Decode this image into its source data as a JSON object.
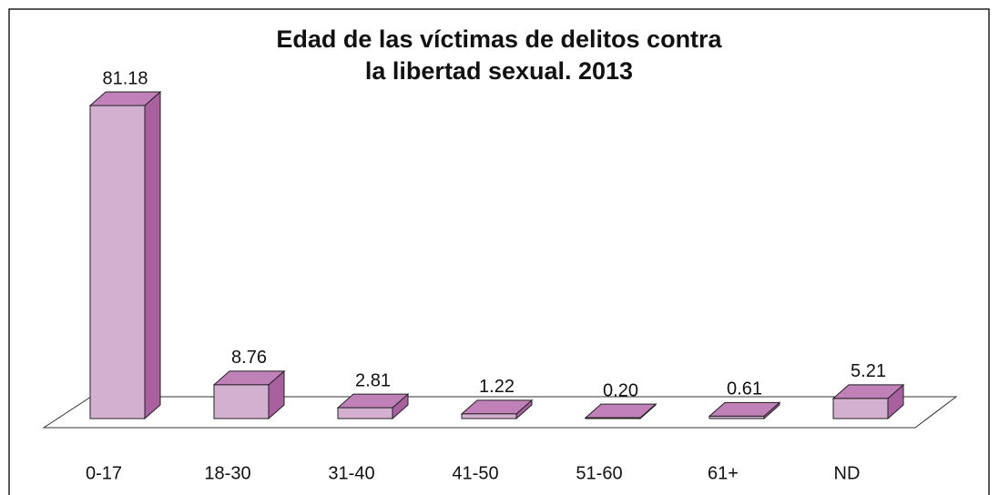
{
  "chart_data": {
    "type": "bar3d",
    "title": [
      "Edad de las víctimas de delitos contra",
      "la libertad sexual. 2013"
    ],
    "categories": [
      "0-17",
      "18-30",
      "31-40",
      "41-50",
      "51-60",
      "61+",
      "ND"
    ],
    "values": [
      81.18,
      8.76,
      2.81,
      1.22,
      0.2,
      0.61,
      5.21
    ],
    "value_labels": [
      "81.18",
      "8.76",
      "2.81",
      "1.22",
      "0.20",
      "0.61",
      "5.21"
    ],
    "color": "#d4b0d0"
  }
}
